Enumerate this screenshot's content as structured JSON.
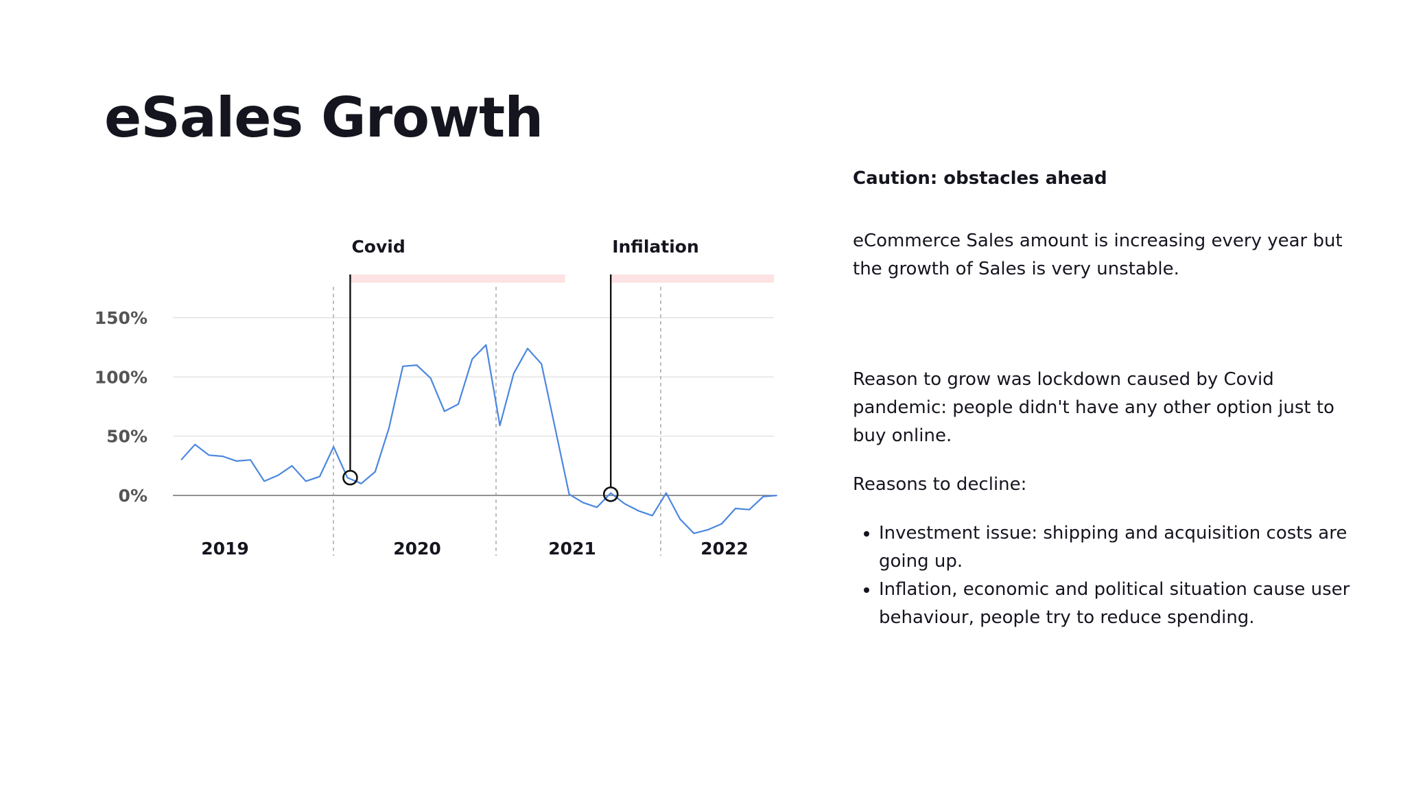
{
  "page": {
    "title": "eSales Growth"
  },
  "side_panel": {
    "caution_title": "Caution: obstacles ahead",
    "paragraph_1": "eCommerce Sales amount is increasing every year but the growth of Sales is very unstable.",
    "paragraph_2": "Reason to grow was lockdown caused by Covid pandemic: people didn't have any other option just to buy online.",
    "paragraph_3": "Reasons to decline:",
    "bullets": [
      "Investment issue: shipping and acquisition costs are going up.",
      "Inflation, economic and political situation cause user behaviour, people try to reduce spending."
    ]
  },
  "chart_data": {
    "type": "line",
    "title": "",
    "xlabel": "",
    "ylabel": "",
    "y_ticks": [
      {
        "value": 0,
        "label": "0%"
      },
      {
        "value": 50,
        "label": "50%"
      },
      {
        "value": 100,
        "label": "100%"
      },
      {
        "value": 150,
        "label": "150%"
      }
    ],
    "ylim": [
      -35,
      180
    ],
    "grid": true,
    "year_labels": [
      "2019",
      "2020",
      "2021",
      "2022"
    ],
    "periods_per_year": 12,
    "series": [
      {
        "color": "#4a86e0",
        "values": [
          30,
          43,
          34,
          33,
          29,
          30,
          12,
          17,
          25,
          12,
          16,
          41,
          15,
          10,
          20,
          57,
          109,
          110,
          99,
          71,
          77,
          115,
          127,
          59,
          103,
          124,
          111,
          56,
          1,
          -6,
          -10,
          2,
          -7,
          -13,
          -17,
          2,
          -20,
          -32,
          -29,
          -24,
          -11,
          -12,
          -1,
          0
        ]
      }
    ],
    "annotations": [
      {
        "label": "Covid",
        "index": 12.2,
        "value": 15,
        "shade_until": 27.7,
        "color": "#fde3e3"
      },
      {
        "label": "Infilation",
        "index": 31,
        "value": 1,
        "shade_until": 44,
        "color": "#fde3e3"
      }
    ]
  }
}
